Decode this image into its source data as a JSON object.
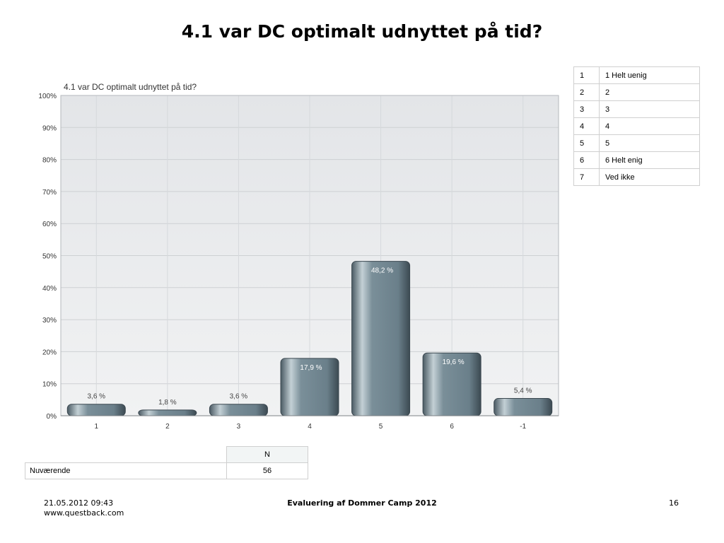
{
  "slide": {
    "title": "4.1 var DC optimalt udnyttet på tid?"
  },
  "chart_data": {
    "type": "bar",
    "title": "4.1 var DC optimalt udnyttet på tid?",
    "categories": [
      "1",
      "2",
      "3",
      "4",
      "5",
      "6",
      "-1"
    ],
    "values": [
      3.6,
      1.8,
      3.6,
      17.9,
      48.2,
      19.6,
      5.4
    ],
    "value_labels": [
      "3,6 %",
      "1,8 %",
      "3,6 %",
      "17,9 %",
      "48,2 %",
      "19,6 %",
      "5,4 %"
    ],
    "y_ticks": [
      "0%",
      "10%",
      "20%",
      "30%",
      "40%",
      "50%",
      "60%",
      "70%",
      "80%",
      "90%",
      "100%"
    ],
    "ylim": [
      0,
      100
    ],
    "xlabel": "",
    "ylabel": "",
    "grid": true,
    "colors": {
      "bar": "#6e838e",
      "bar_dark": "#3f4e57",
      "bar_light": "#b8c6cc",
      "plot_bg": "#e9ebed"
    }
  },
  "legend": [
    {
      "code": "1",
      "label": "1 Helt uenig"
    },
    {
      "code": "2",
      "label": "2"
    },
    {
      "code": "3",
      "label": "3"
    },
    {
      "code": "4",
      "label": "4"
    },
    {
      "code": "5",
      "label": "5"
    },
    {
      "code": "6",
      "label": "6 Helt enig"
    },
    {
      "code": "7",
      "label": "Ved ikke"
    }
  ],
  "summary": {
    "header": "N",
    "row_label": "Nuværende",
    "value": "56"
  },
  "footer": {
    "datetime": "21.05.2012 09:43",
    "website": "www.questback.com",
    "center": "Evaluering af Dommer Camp 2012",
    "page": "16"
  }
}
